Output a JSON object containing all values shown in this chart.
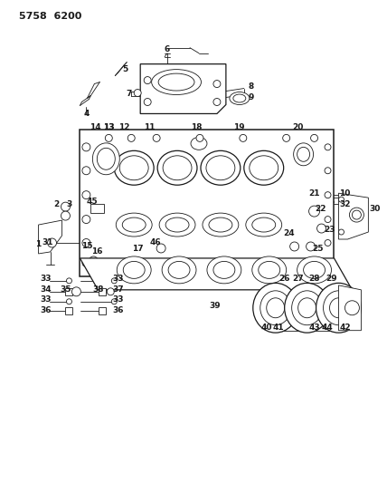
{
  "bg_color": "#ffffff",
  "line_color": "#1a1a1a",
  "header": "5758  6200",
  "fig_width": 4.28,
  "fig_height": 5.33,
  "dpi": 100
}
